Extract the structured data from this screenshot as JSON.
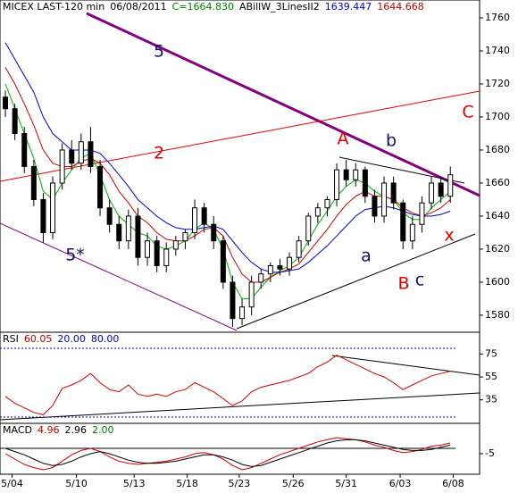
{
  "chart_data": [
    {
      "type": "candlestick",
      "header": [
        {
          "text": "MICEX LAST-120 min",
          "color": "#000000"
        },
        {
          "text": "06/08/2011",
          "color": "#000000"
        },
        {
          "text": "C=1664.830",
          "color": "#008000"
        },
        {
          "text": "ABillW_3LinesII2",
          "color": "#000000"
        },
        {
          "text": "1639.447",
          "color": "#0000c0"
        },
        {
          "text": "1644.668",
          "color": "#c00000"
        }
      ],
      "open": [
        1712,
        1705,
        1690,
        1670,
        1650,
        1630,
        1660,
        1680,
        1672,
        1685,
        1670,
        1645,
        1635,
        1625,
        1640,
        1615,
        1625,
        1610,
        1620,
        1625,
        1630,
        1645,
        1635,
        1625,
        1600,
        1578,
        1585,
        1600,
        1605,
        1610,
        1608,
        1615,
        1625,
        1640,
        1645,
        1650,
        1668,
        1662,
        1668,
        1652,
        1640,
        1660,
        1648,
        1625,
        1635,
        1648,
        1660,
        1652
      ],
      "high": [
        1716,
        1708,
        1694,
        1674,
        1654,
        1664,
        1684,
        1686,
        1690,
        1694,
        1674,
        1650,
        1640,
        1644,
        1645,
        1630,
        1628,
        1624,
        1628,
        1632,
        1650,
        1648,
        1640,
        1628,
        1604,
        1590,
        1604,
        1608,
        1612,
        1614,
        1618,
        1628,
        1642,
        1648,
        1652,
        1672,
        1674,
        1672,
        1670,
        1656,
        1664,
        1664,
        1650,
        1640,
        1652,
        1664,
        1664,
        1670
      ],
      "low": [
        1700,
        1686,
        1666,
        1646,
        1624,
        1626,
        1656,
        1668,
        1668,
        1666,
        1640,
        1630,
        1620,
        1620,
        1610,
        1610,
        1606,
        1606,
        1616,
        1620,
        1626,
        1630,
        1620,
        1596,
        1573,
        1574,
        1580,
        1596,
        1600,
        1604,
        1604,
        1612,
        1622,
        1636,
        1640,
        1646,
        1658,
        1658,
        1648,
        1636,
        1636,
        1644,
        1620,
        1620,
        1630,
        1644,
        1648,
        1648
      ],
      "close": [
        1705,
        1690,
        1670,
        1650,
        1630,
        1660,
        1680,
        1672,
        1685,
        1670,
        1645,
        1635,
        1625,
        1640,
        1615,
        1625,
        1610,
        1620,
        1625,
        1630,
        1645,
        1635,
        1625,
        1600,
        1578,
        1585,
        1600,
        1605,
        1610,
        1608,
        1615,
        1625,
        1640,
        1645,
        1650,
        1668,
        1662,
        1668,
        1652,
        1640,
        1660,
        1648,
        1625,
        1635,
        1648,
        1660,
        1652,
        1665
      ],
      "series": [
        {
          "color": "#00b000",
          "values": [
            1720,
            1705,
            1690,
            1675,
            1655,
            1650,
            1660,
            1668,
            1675,
            1678,
            1665,
            1650,
            1640,
            1635,
            1630,
            1628,
            1622,
            1620,
            1622,
            1625,
            1632,
            1636,
            1632,
            1620,
            1600,
            1590,
            1590,
            1597,
            1603,
            1607,
            1610,
            1615,
            1625,
            1635,
            1643,
            1652,
            1658,
            1662,
            1660,
            1655,
            1652,
            1650,
            1642,
            1638,
            1638,
            1645,
            1650,
            1655
          ]
        },
        {
          "color": "#d00000",
          "values": [
            1730,
            1720,
            1708,
            1695,
            1680,
            1672,
            1670,
            1670,
            1673,
            1675,
            1672,
            1665,
            1655,
            1648,
            1640,
            1636,
            1630,
            1626,
            1625,
            1625,
            1628,
            1632,
            1633,
            1628,
            1615,
            1605,
            1600,
            1600,
            1603,
            1606,
            1608,
            1611,
            1618,
            1625,
            1632,
            1640,
            1647,
            1652,
            1655,
            1652,
            1652,
            1650,
            1645,
            1642,
            1640,
            1642,
            1645,
            1650
          ]
        },
        {
          "color": "#0000d0",
          "values": [
            1745,
            1735,
            1725,
            1715,
            1700,
            1690,
            1685,
            1680,
            1680,
            1680,
            1678,
            1672,
            1665,
            1658,
            1650,
            1645,
            1640,
            1636,
            1633,
            1632,
            1632,
            1633,
            1634,
            1632,
            1625,
            1618,
            1612,
            1608,
            1606,
            1606,
            1607,
            1608,
            1612,
            1617,
            1622,
            1628,
            1634,
            1640,
            1644,
            1645,
            1646,
            1645,
            1643,
            1641,
            1640,
            1640,
            1641,
            1643
          ]
        }
      ],
      "annotations": [
        {
          "text": "5",
          "color": "#101060"
        },
        {
          "text": "2",
          "color": "#e00000"
        },
        {
          "text": "A",
          "color": "#e00000"
        },
        {
          "text": "b",
          "color": "#101060"
        },
        {
          "text": "a",
          "color": "#101060"
        },
        {
          "text": "B",
          "color": "#e00000"
        },
        {
          "text": "c",
          "color": "#101060"
        },
        {
          "text": "x",
          "color": "#e00000"
        },
        {
          "text": "C",
          "color": "#e00000"
        },
        {
          "text": "5*",
          "color": "#101060"
        }
      ],
      "xlim": [
        -0.57,
        50.09
      ],
      "ylim": [
        1569.7,
        1770.8
      ],
      "yticks": [
        1580,
        1600,
        1620,
        1640,
        1660,
        1680,
        1700,
        1720,
        1740,
        1760
      ]
    },
    {
      "type": "line",
      "header": [
        {
          "text": "RSI",
          "color": "#000000"
        },
        {
          "text": "60.05",
          "color": "#c00000"
        },
        {
          "text": "20.00",
          "color": "#0000c0"
        },
        {
          "text": "80.00",
          "color": "#0000c0"
        }
      ],
      "series": [
        {
          "color": "#d00000",
          "values": [
            38,
            32,
            28,
            24,
            22,
            30,
            45,
            48,
            52,
            58,
            50,
            44,
            42,
            48,
            40,
            38,
            40,
            38,
            42,
            44,
            50,
            46,
            42,
            36,
            30,
            34,
            42,
            46,
            48,
            50,
            52,
            55,
            58,
            64,
            68,
            74,
            70,
            66,
            62,
            58,
            55,
            50,
            44,
            48,
            52,
            56,
            58,
            60
          ]
        }
      ],
      "levels": [
        20,
        80
      ],
      "level_color": "#0000c0",
      "xlim": [
        -0.57,
        50.09
      ],
      "ylim": [
        14.5,
        94
      ],
      "yticks": [
        35,
        55,
        75
      ]
    },
    {
      "type": "line",
      "header": [
        {
          "text": "MACD",
          "color": "#000000"
        },
        {
          "text": "4.96",
          "color": "#c00000"
        },
        {
          "text": "2.96",
          "color": "#000000"
        },
        {
          "text": "2.00",
          "color": "#008000"
        }
      ],
      "series": [
        {
          "color": "#d00000",
          "values": [
            -5,
            -10,
            -15,
            -18,
            -20,
            -18,
            -12,
            -6,
            -2,
            0,
            -3,
            -8,
            -12,
            -14,
            -15,
            -14,
            -13,
            -12,
            -10,
            -8,
            -5,
            -4,
            -6,
            -10,
            -16,
            -20,
            -18,
            -14,
            -10,
            -6,
            -3,
            0,
            3,
            6,
            8,
            10,
            9,
            8,
            6,
            3,
            1,
            -2,
            -4,
            -3,
            -1,
            2,
            3,
            5
          ]
        },
        {
          "color": "#000000",
          "values": [
            0,
            -3,
            -6,
            -10,
            -14,
            -16,
            -15,
            -12,
            -8,
            -5,
            -3,
            -5,
            -8,
            -11,
            -13,
            -14,
            -14,
            -13,
            -12,
            -10,
            -8,
            -6,
            -6,
            -8,
            -11,
            -15,
            -17,
            -16,
            -13,
            -10,
            -7,
            -4,
            -1,
            2,
            5,
            7,
            8,
            8,
            7,
            5,
            3,
            1,
            -1,
            -2,
            -2,
            -1,
            1,
            3
          ]
        }
      ],
      "levels": [
        0
      ],
      "level_color": "#000000",
      "xlim": [
        -0.57,
        50.09
      ],
      "ylim": [
        -24.2,
        23.3
      ],
      "yticks": [
        -5
      ],
      "xticks": [
        {
          "value": 0.7,
          "label": "5/04"
        },
        {
          "value": 7.5,
          "label": "5/10"
        },
        {
          "value": 13.6,
          "label": "5/13"
        },
        {
          "value": 19.2,
          "label": "5/18"
        },
        {
          "value": 24.7,
          "label": "5/23"
        },
        {
          "value": 30.4,
          "label": "5/26"
        },
        {
          "value": 36.0,
          "label": "5/31"
        },
        {
          "value": 41.7,
          "label": "6/03"
        },
        {
          "value": 47.3,
          "label": "6/08"
        }
      ]
    }
  ]
}
